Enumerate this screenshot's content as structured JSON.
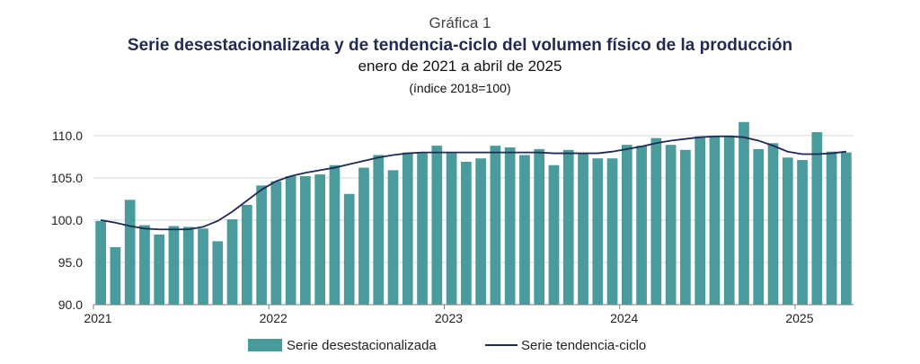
{
  "header": {
    "label": "Gráfica 1",
    "title": "Serie desestacionalizada y de tendencia-ciclo del volumen físico de la producción",
    "subtitle": "enero de 2021 a abril de 2025",
    "unit": "(índice 2018=100)"
  },
  "chart_data": {
    "type": "bar",
    "ylim": [
      90,
      112
    ],
    "yticks": [
      "90.0",
      "95.0",
      "100.0",
      "105.0",
      "110.0"
    ],
    "ytick_values": [
      90,
      95,
      100,
      105,
      110
    ],
    "xtick_labels": [
      "2021",
      "2022",
      "2023",
      "2024",
      "2025"
    ],
    "xtick_indices": [
      0,
      12,
      24,
      36,
      48
    ],
    "grid": true,
    "legend_position": "bottom",
    "colors": {
      "bars": "#4a9b9c",
      "trend": "#1f2a55"
    },
    "series": [
      {
        "name": "Serie desestacionalizada",
        "type": "bar",
        "values": [
          99.9,
          96.8,
          102.4,
          99.4,
          98.3,
          99.3,
          99.2,
          99.0,
          97.5,
          100.1,
          101.8,
          104.1,
          104.6,
          105.2,
          105.2,
          105.4,
          106.5,
          103.1,
          106.2,
          107.7,
          105.9,
          108.0,
          107.9,
          108.8,
          107.9,
          106.9,
          107.3,
          108.8,
          108.6,
          107.7,
          108.4,
          106.5,
          108.3,
          107.9,
          107.3,
          107.3,
          108.9,
          108.8,
          109.7,
          108.9,
          108.3,
          109.9,
          109.9,
          110.0,
          111.6,
          108.4,
          109.1,
          107.4,
          107.1,
          110.4,
          108.1,
          108.0
        ]
      },
      {
        "name": "Serie tendencia-ciclo",
        "type": "line",
        "values": [
          100.0,
          99.7,
          99.3,
          99.0,
          98.9,
          98.9,
          98.9,
          99.2,
          99.9,
          101.0,
          102.3,
          103.6,
          104.6,
          105.2,
          105.6,
          105.9,
          106.2,
          106.6,
          107.0,
          107.4,
          107.7,
          107.9,
          108.0,
          108.0,
          108.0,
          108.0,
          108.0,
          108.0,
          108.0,
          108.0,
          108.0,
          107.9,
          107.9,
          107.9,
          107.9,
          108.1,
          108.4,
          108.7,
          109.1,
          109.4,
          109.6,
          109.8,
          109.9,
          109.9,
          109.8,
          109.4,
          108.8,
          108.1,
          107.8,
          107.8,
          107.9,
          108.1
        ]
      }
    ]
  }
}
